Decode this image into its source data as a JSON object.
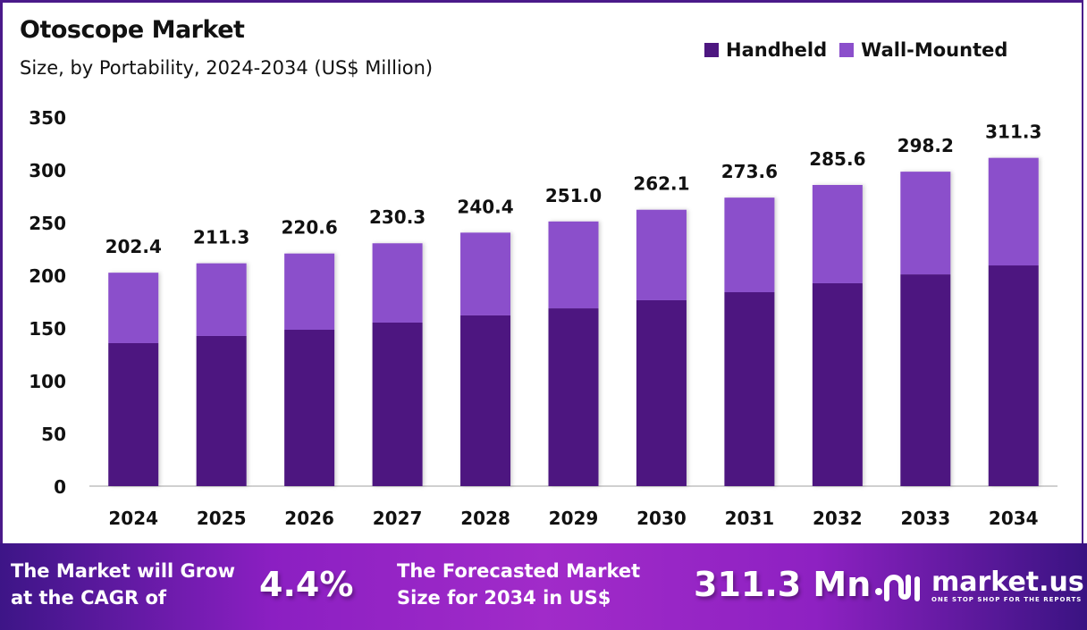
{
  "chart_data": {
    "type": "bar",
    "stacked": true,
    "title": "Otoscope Market",
    "subtitle": "Size, by Portability, 2024-2034 (US$ Million)",
    "xlabel": "",
    "ylabel": "",
    "ylim": [
      0,
      350
    ],
    "yticks": [
      0,
      50,
      100,
      150,
      200,
      250,
      300,
      350
    ],
    "grid": false,
    "legend_position": "top-right",
    "categories": [
      "2024",
      "2025",
      "2026",
      "2027",
      "2028",
      "2029",
      "2030",
      "2031",
      "2032",
      "2033",
      "2034"
    ],
    "series": [
      {
        "name": "Handheld",
        "color": "#4d1780",
        "values": [
          135.6,
          142.4,
          148.3,
          155.1,
          161.9,
          168.6,
          176.3,
          183.9,
          192.4,
          200.8,
          209.3
        ]
      },
      {
        "name": "Wall-Mounted",
        "color": "#8b4fcb",
        "values": [
          66.8,
          68.9,
          72.3,
          75.2,
          78.5,
          82.4,
          85.8,
          89.7,
          93.2,
          97.4,
          102.0
        ]
      }
    ],
    "totals": [
      "202.4",
      "211.3",
      "220.6",
      "230.3",
      "240.4",
      "251.0",
      "262.1",
      "273.6",
      "285.6",
      "298.2",
      "311.3"
    ]
  },
  "footer": {
    "cagr_text_line1": "The Market will Grow",
    "cagr_text_line2": "at the CAGR of",
    "cagr_value": "4.4%",
    "forecast_text_line1": "The Forecasted Market",
    "forecast_text_line2": "Size for 2034 in US$",
    "forecast_value": "311.3 Mn",
    "logo_name": "market.us",
    "logo_tagline": "ONE STOP SHOP FOR THE REPORTS"
  }
}
